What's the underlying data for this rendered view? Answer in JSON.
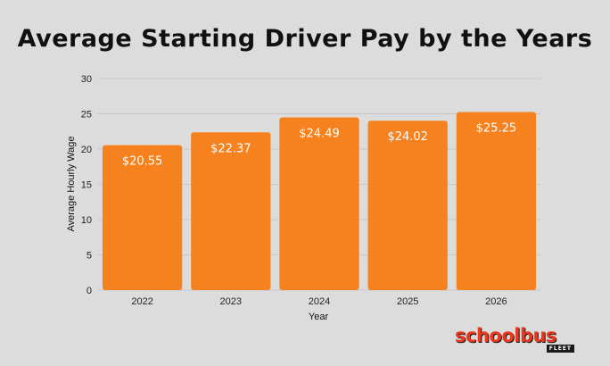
{
  "chart_data": {
    "type": "bar",
    "title": "Average Starting Driver Pay by the Years",
    "xlabel": "Year",
    "ylabel": "Average Hourly Wage",
    "categories": [
      "2022",
      "2023",
      "2024",
      "2025",
      "2026"
    ],
    "values": [
      20.55,
      22.37,
      24.49,
      24.02,
      25.25
    ],
    "value_labels": [
      "$20.55",
      "$22.37",
      "$24.49",
      "$24.02",
      "$25.25"
    ],
    "ylim": [
      0,
      30
    ],
    "yticks": [
      0,
      5,
      10,
      15,
      20,
      25,
      30
    ],
    "grid": true,
    "bar_color": "#f5821f"
  },
  "brand": {
    "logo_text": "schoolbus",
    "logo_subtext": "FLEET",
    "logo_color": "#e8391f"
  }
}
